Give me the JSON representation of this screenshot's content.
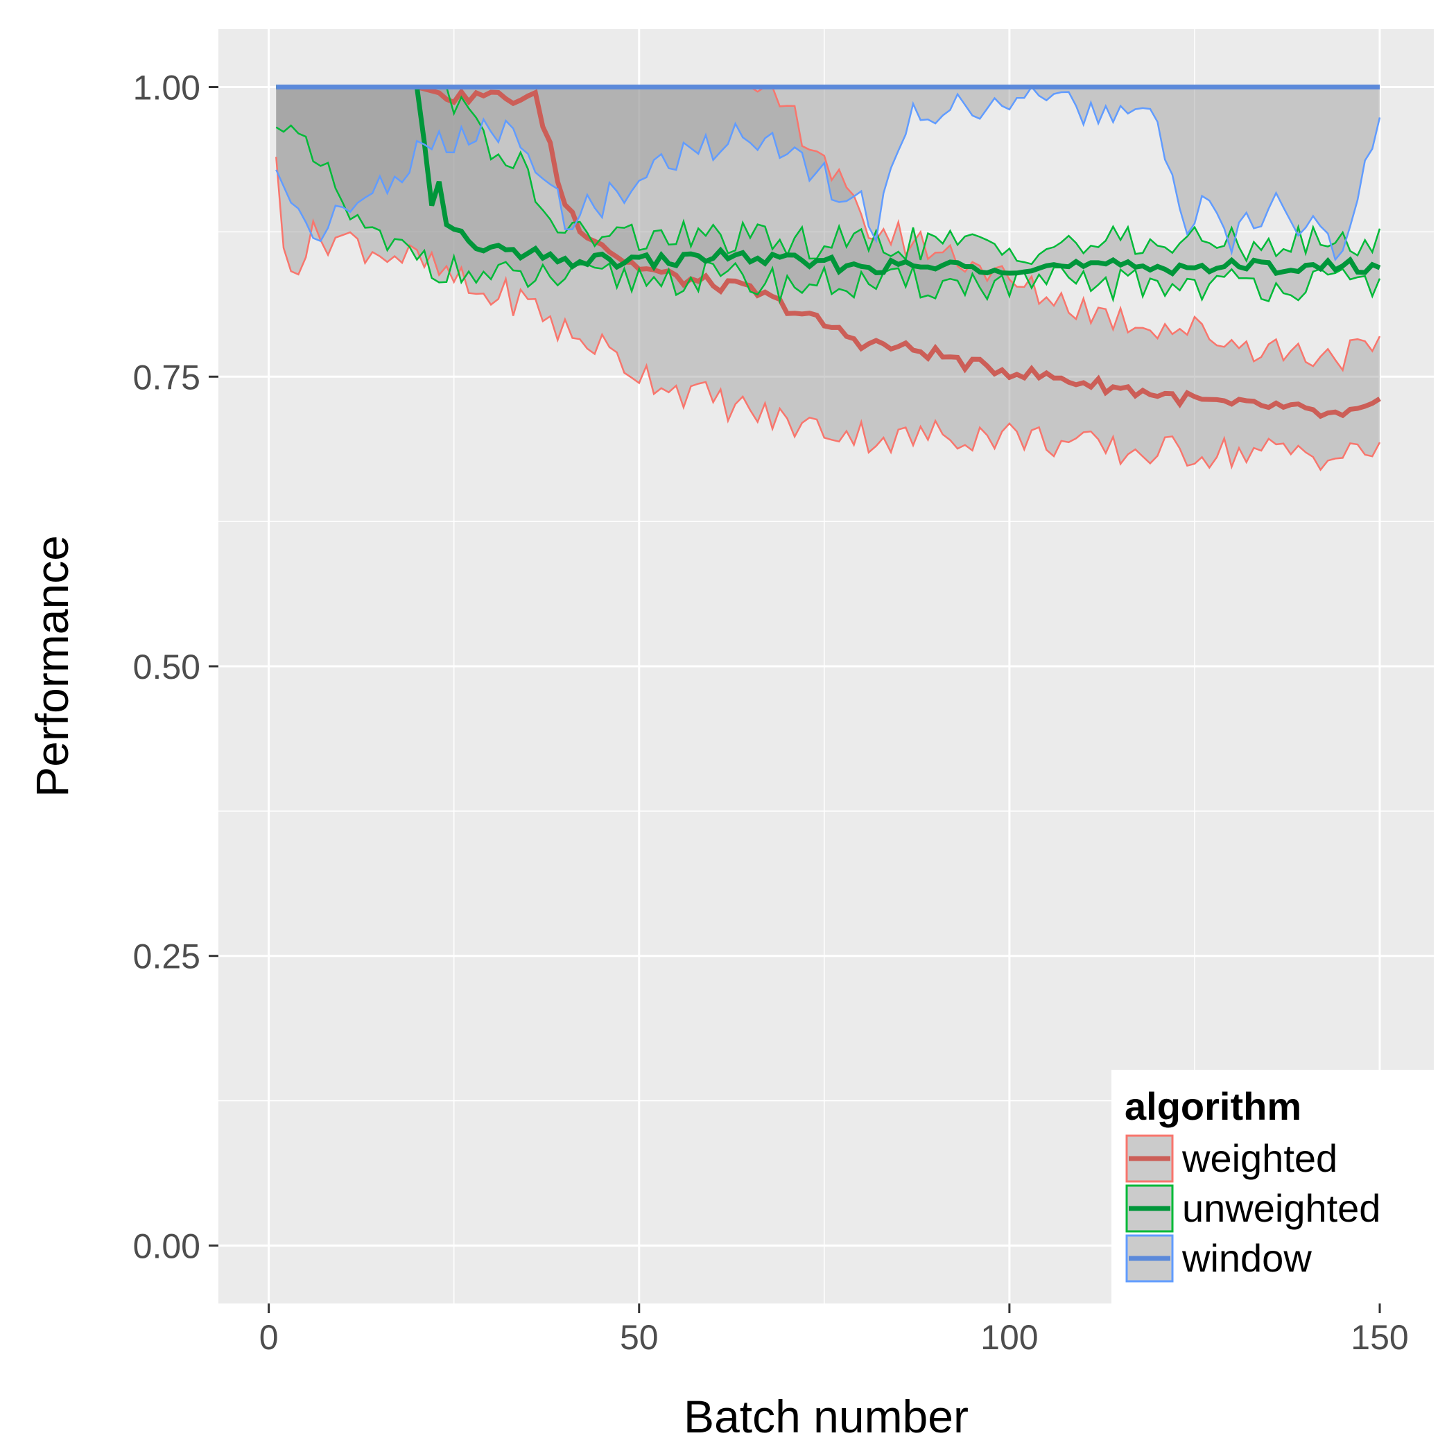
{
  "chart_data": {
    "type": "line",
    "xlabel": "Batch number",
    "ylabel": "Performance",
    "xlim": [
      -6.8,
      157.3
    ],
    "ylim": [
      -0.05,
      1.05
    ],
    "x_ticks": [
      0,
      50,
      100,
      150
    ],
    "x_tick_labels": [
      "0",
      "50",
      "100",
      "150"
    ],
    "y_ticks": [
      0,
      0.25,
      0.5,
      0.75,
      1.0
    ],
    "y_tick_labels": [
      "0.00",
      "0.25",
      "0.50",
      "0.75",
      "1.00"
    ],
    "grid": true,
    "legend": {
      "title": "algorithm",
      "position": "bottom-right"
    },
    "ribbon_fill": "#999999",
    "ribbon_opacity": 0.45,
    "series": [
      {
        "name": "weighted",
        "color": "#F8766D",
        "mean_color": "#CC5E57",
        "anchors": {
          "x": [
            1,
            2,
            4,
            6,
            8,
            10,
            14,
            20,
            26,
            28,
            32,
            36,
            38,
            39,
            40,
            42,
            44,
            46,
            48,
            50,
            55,
            60,
            65,
            70,
            75,
            80,
            85,
            90,
            95,
            100,
            105,
            110,
            115,
            120,
            125,
            130,
            135,
            140,
            145,
            150
          ],
          "mean": [
            1.0,
            1.0,
            1.0,
            1.0,
            1.0,
            1.0,
            1.0,
            1.0,
            0.99,
            0.995,
            0.99,
            0.99,
            0.95,
            0.92,
            0.9,
            0.88,
            0.87,
            0.86,
            0.85,
            0.845,
            0.835,
            0.83,
            0.825,
            0.81,
            0.795,
            0.78,
            0.775,
            0.77,
            0.76,
            0.755,
            0.75,
            0.745,
            0.74,
            0.735,
            0.73,
            0.725,
            0.725,
            0.72,
            0.715,
            0.725
          ],
          "lower": [
            0.93,
            0.86,
            0.85,
            0.87,
            0.87,
            0.87,
            0.86,
            0.85,
            0.83,
            0.82,
            0.82,
            0.81,
            0.8,
            0.79,
            0.79,
            0.78,
            0.78,
            0.77,
            0.76,
            0.755,
            0.74,
            0.73,
            0.72,
            0.71,
            0.705,
            0.7,
            0.695,
            0.7,
            0.7,
            0.7,
            0.695,
            0.69,
            0.685,
            0.685,
            0.685,
            0.685,
            0.685,
            0.685,
            0.68,
            0.69
          ],
          "upper": [
            1.0,
            1.0,
            1.0,
            1.0,
            1.0,
            1.0,
            1.0,
            1.0,
            1.0,
            1.0,
            1.0,
            1.0,
            1.0,
            1.0,
            1.0,
            1.0,
            1.0,
            1.0,
            1.0,
            1.0,
            1.0,
            1.0,
            1.0,
            0.98,
            0.94,
            0.88,
            0.87,
            0.86,
            0.85,
            0.83,
            0.82,
            0.81,
            0.8,
            0.795,
            0.79,
            0.78,
            0.775,
            0.77,
            0.77,
            0.77
          ]
        }
      },
      {
        "name": "unweighted",
        "color": "#00BA38",
        "mean_color": "#00963A",
        "anchors": {
          "x": [
            1,
            4,
            8,
            12,
            16,
            20,
            22,
            23,
            24,
            26,
            30,
            34,
            36,
            38,
            40,
            45,
            50,
            55,
            60,
            70,
            80,
            90,
            100,
            110,
            120,
            130,
            140,
            150
          ],
          "mean": [
            1.0,
            1.0,
            1.0,
            1.0,
            1.0,
            1.0,
            0.9,
            0.92,
            0.88,
            0.87,
            0.86,
            0.855,
            0.855,
            0.85,
            0.85,
            0.85,
            0.85,
            0.85,
            0.855,
            0.85,
            0.845,
            0.845,
            0.845,
            0.845,
            0.845,
            0.845,
            0.845,
            0.845
          ],
          "lower": [
            0.98,
            0.95,
            0.92,
            0.88,
            0.86,
            0.86,
            0.85,
            0.845,
            0.84,
            0.84,
            0.835,
            0.835,
            0.835,
            0.835,
            0.835,
            0.835,
            0.835,
            0.835,
            0.835,
            0.83,
            0.83,
            0.83,
            0.83,
            0.83,
            0.83,
            0.83,
            0.83,
            0.83
          ],
          "upper": [
            1.0,
            1.0,
            1.0,
            1.0,
            1.0,
            1.0,
            1.0,
            1.0,
            1.0,
            0.98,
            0.95,
            0.93,
            0.9,
            0.89,
            0.875,
            0.87,
            0.87,
            0.87,
            0.87,
            0.865,
            0.865,
            0.865,
            0.86,
            0.865,
            0.865,
            0.865,
            0.865,
            0.865
          ]
        }
      },
      {
        "name": "window",
        "color": "#619CFF",
        "mean_color": "#5B89DA",
        "anchors": {
          "x": [
            1,
            2,
            5,
            8,
            12,
            16,
            20,
            24,
            28,
            32,
            36,
            40,
            45,
            50,
            55,
            60,
            65,
            70,
            75,
            80,
            82,
            84,
            86,
            90,
            95,
            100,
            110,
            120,
            122,
            124,
            126,
            128,
            130,
            132,
            134,
            136,
            138,
            140,
            142,
            144,
            146,
            148,
            150
          ],
          "mean": [
            1.0,
            1.0,
            1.0,
            1.0,
            1.0,
            1.0,
            1.0,
            1.0,
            1.0,
            1.0,
            1.0,
            1.0,
            1.0,
            1.0,
            1.0,
            1.0,
            1.0,
            1.0,
            1.0,
            1.0,
            1.0,
            1.0,
            1.0,
            1.0,
            1.0,
            1.0,
            1.0,
            1.0,
            1.0,
            1.0,
            1.0,
            1.0,
            1.0,
            1.0,
            1.0,
            1.0,
            1.0,
            1.0,
            1.0,
            1.0,
            1.0,
            1.0,
            1.0
          ],
          "lower": [
            0.93,
            0.92,
            0.88,
            0.88,
            0.9,
            0.92,
            0.94,
            0.95,
            0.96,
            0.96,
            0.93,
            0.89,
            0.9,
            0.92,
            0.94,
            0.95,
            0.96,
            0.95,
            0.92,
            0.9,
            0.88,
            0.92,
            0.97,
            0.98,
            0.985,
            0.99,
            0.98,
            0.97,
            0.91,
            0.88,
            0.9,
            0.88,
            0.87,
            0.89,
            0.88,
            0.9,
            0.87,
            0.89,
            0.87,
            0.86,
            0.88,
            0.95,
            0.96
          ],
          "upper": [
            1.0,
            1.0,
            1.0,
            1.0,
            1.0,
            1.0,
            1.0,
            1.0,
            1.0,
            1.0,
            1.0,
            1.0,
            1.0,
            1.0,
            1.0,
            1.0,
            1.0,
            1.0,
            1.0,
            1.0,
            1.0,
            1.0,
            1.0,
            1.0,
            1.0,
            1.0,
            1.0,
            1.0,
            1.0,
            1.0,
            1.0,
            1.0,
            1.0,
            1.0,
            1.0,
            1.0,
            1.0,
            1.0,
            1.0,
            1.0,
            1.0,
            1.0,
            1.0
          ]
        }
      }
    ]
  }
}
